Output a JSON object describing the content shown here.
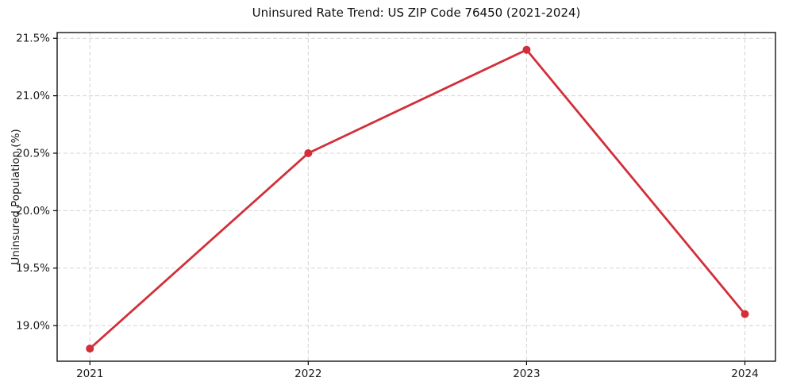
{
  "chart_data": {
    "type": "line",
    "title": "Uninsured Rate Trend: US ZIP Code 76450 (2021-2024)",
    "xlabel": "",
    "ylabel": "Uninsured Population (%)",
    "categories": [
      "2021",
      "2022",
      "2023",
      "2024"
    ],
    "x": [
      2021,
      2022,
      2023,
      2024
    ],
    "values": [
      18.8,
      20.5,
      21.4,
      19.1
    ],
    "xlim": [
      2020.85,
      2024.14
    ],
    "ylim": [
      18.69,
      21.55
    ],
    "yticks": [
      19.0,
      19.5,
      20.0,
      20.5,
      21.0,
      21.5
    ],
    "ytick_labels": [
      "19.0%",
      "19.5%",
      "20.0%",
      "20.5%",
      "21.0%",
      "21.5%"
    ],
    "grid": true,
    "legend_position": "none",
    "line_color": "#d22f3a",
    "marker": "circle",
    "marker_radius": 5,
    "grid_color": "#d4d4d4",
    "axis_color": "#000000",
    "background": "#ffffff"
  }
}
